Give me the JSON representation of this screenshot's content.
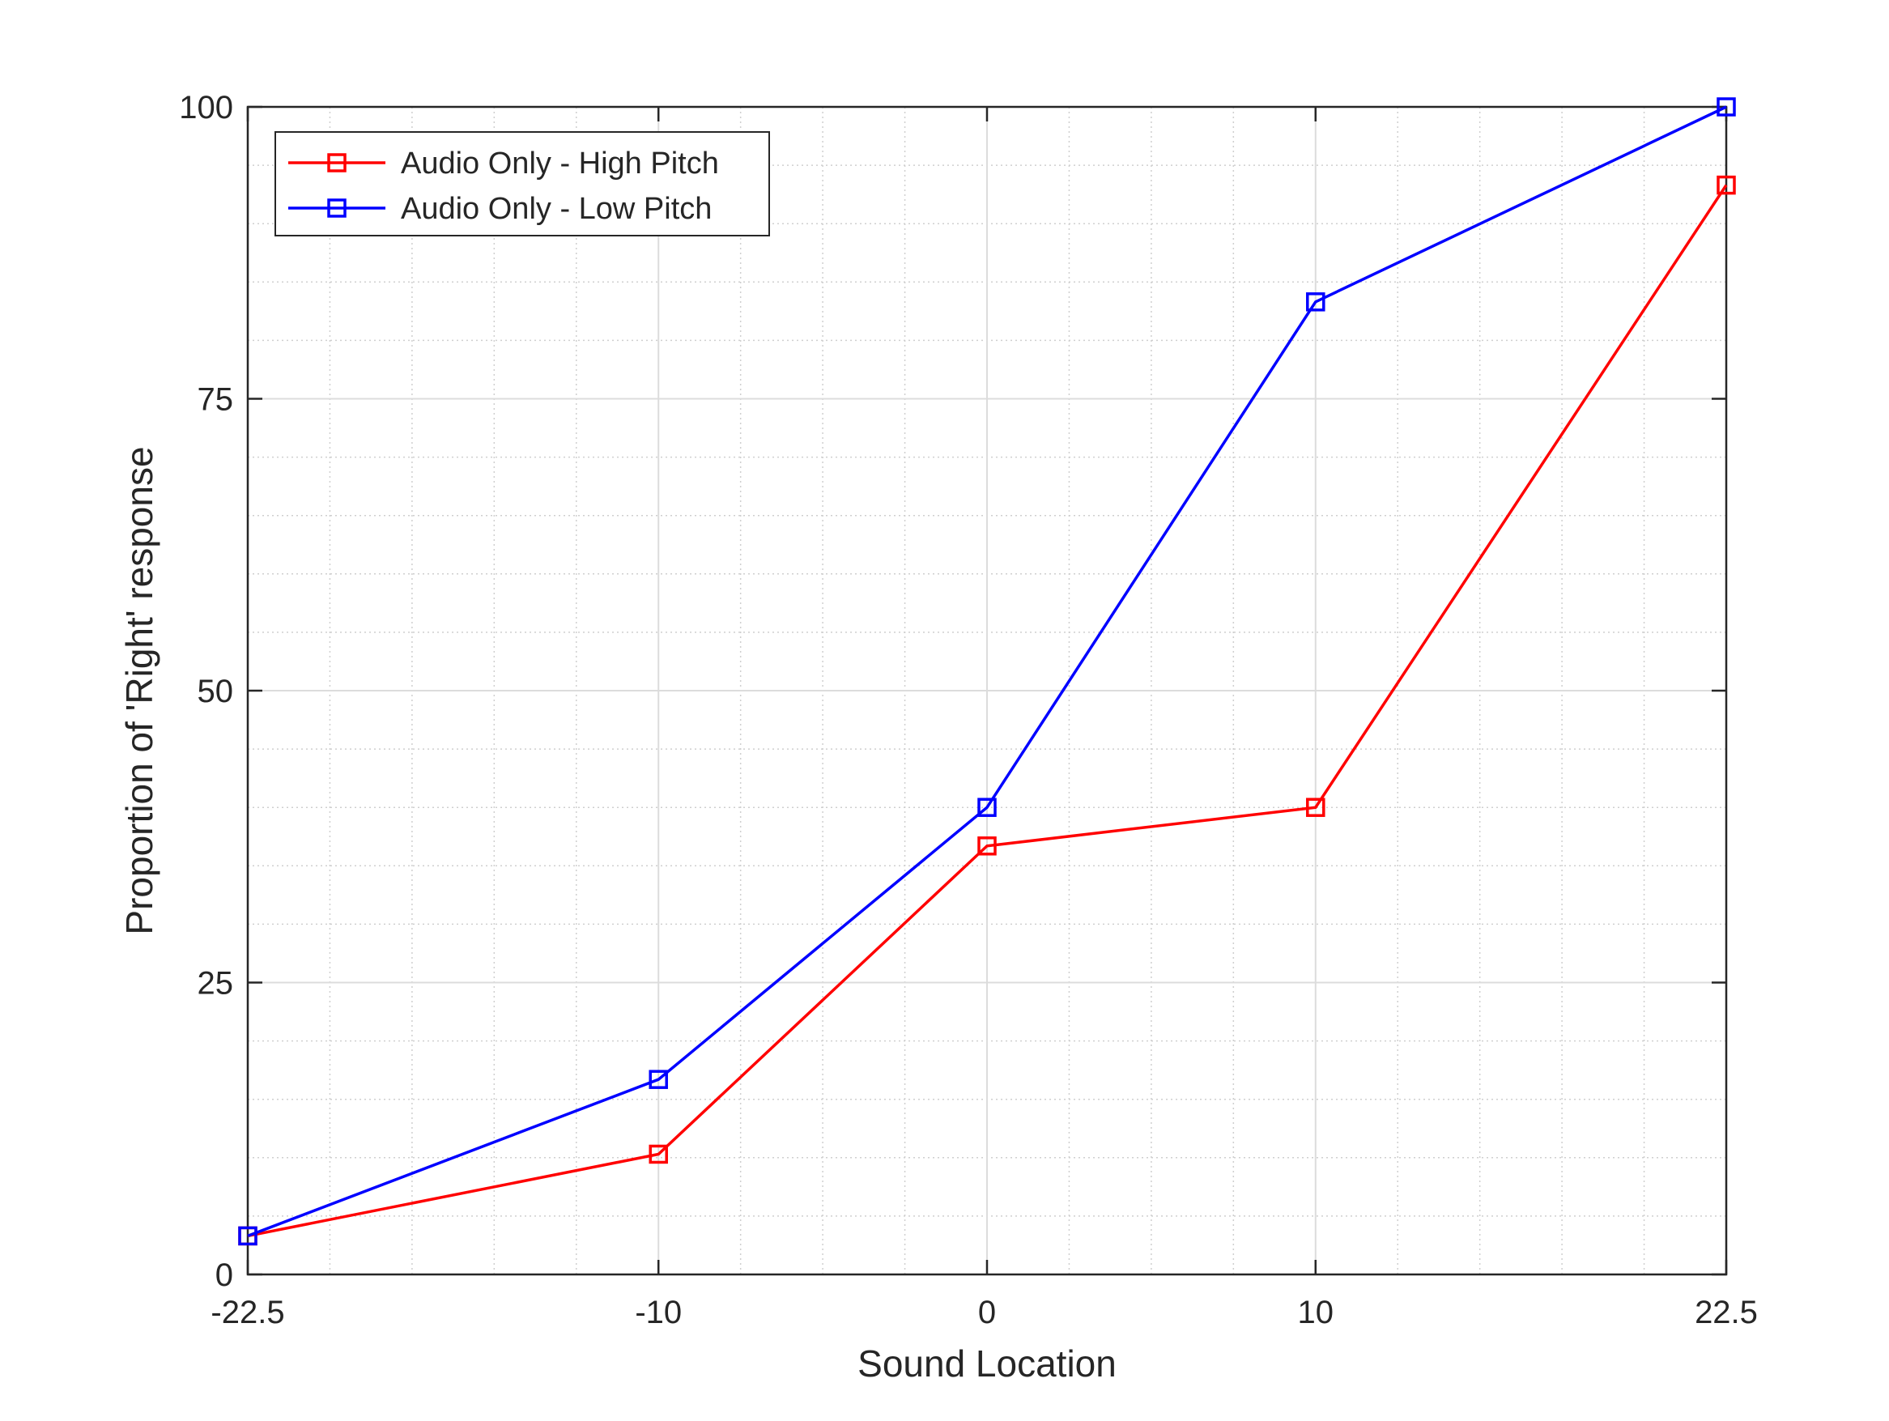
{
  "chart_data": {
    "type": "line",
    "title": "",
    "xlabel": "Sound Location",
    "ylabel": "Proportion of 'Right' response",
    "x": [
      -22.5,
      -10,
      0,
      10,
      22.5
    ],
    "x_tick_labels": [
      "-22.5",
      "-10",
      "0",
      "10",
      "22.5"
    ],
    "y_tick_values": [
      0,
      25,
      50,
      75,
      100
    ],
    "y_tick_labels": [
      "0",
      "25",
      "50",
      "75",
      "100"
    ],
    "xlim": [
      -22.5,
      22.5
    ],
    "ylim": [
      0,
      100
    ],
    "grid": "on (major and minor)",
    "legend_position": "top-left",
    "marker": "square",
    "series": [
      {
        "name": "Audio Only - High Pitch",
        "color": "#ff0000",
        "values": [
          3.3,
          10.3,
          36.7,
          40.0,
          93.3
        ]
      },
      {
        "name": "Audio Only - Low Pitch",
        "color": "#0000ff",
        "values": [
          3.3,
          16.7,
          40.0,
          83.3,
          100.0
        ]
      }
    ]
  }
}
